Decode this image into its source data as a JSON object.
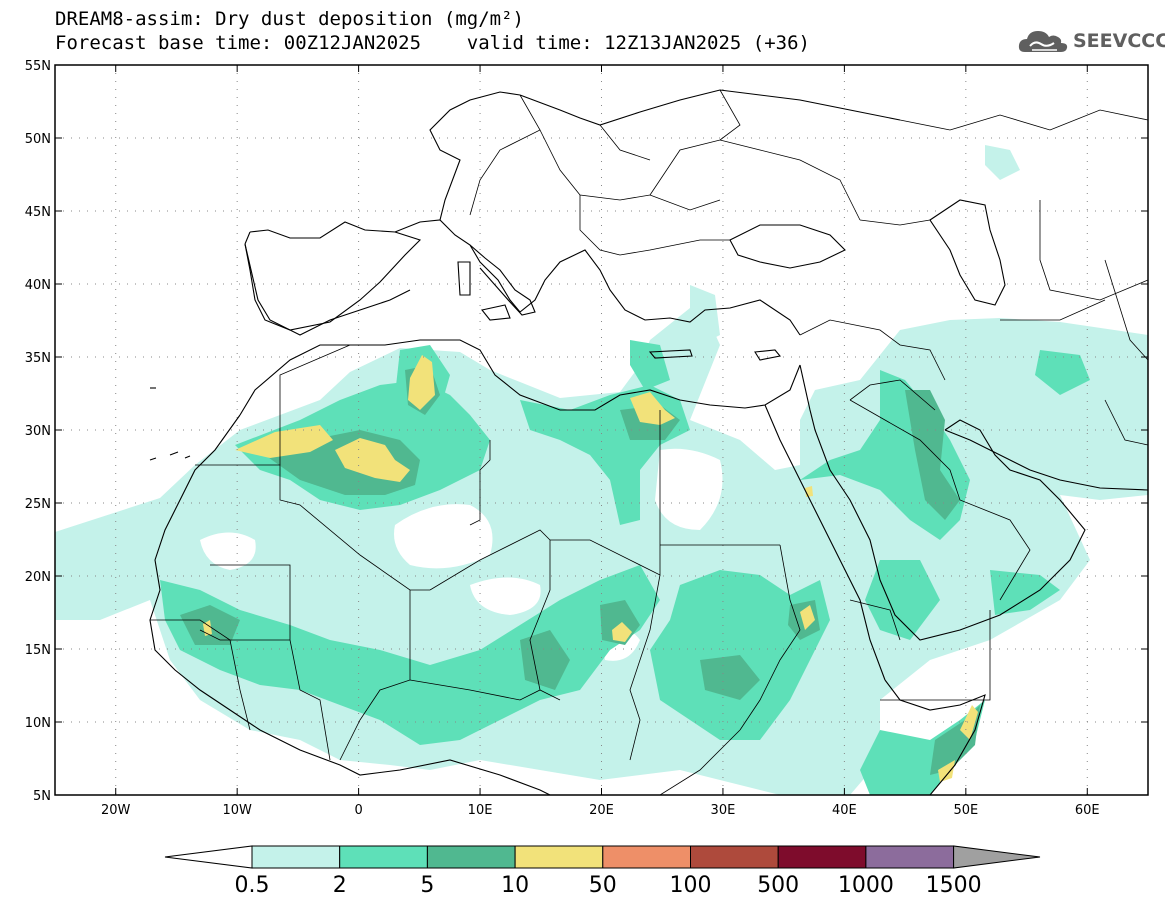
{
  "title": {
    "line1": "DREAM8-assim: Dry dust deposition (mg/m²)",
    "line2": "Forecast base time: 00Z12JAN2025    valid time: 12Z13JAN2025 (+36)"
  },
  "logo": {
    "text": "SEEVCCC",
    "icon": "cloud-icon"
  },
  "map": {
    "lon_range": [
      -25,
      65
    ],
    "lat_range": [
      5,
      55
    ],
    "lat_ticks": [
      {
        "value": 55,
        "label": "55N"
      },
      {
        "value": 50,
        "label": "50N"
      },
      {
        "value": 45,
        "label": "45N"
      },
      {
        "value": 40,
        "label": "40N"
      },
      {
        "value": 35,
        "label": "35N"
      },
      {
        "value": 30,
        "label": "30N"
      },
      {
        "value": 25,
        "label": "25N"
      },
      {
        "value": 20,
        "label": "20N"
      },
      {
        "value": 15,
        "label": "15N"
      },
      {
        "value": 10,
        "label": "10N"
      },
      {
        "value": 5,
        "label": "5N"
      }
    ],
    "lon_ticks": [
      {
        "value": -20,
        "label": "20W"
      },
      {
        "value": -10,
        "label": "10W"
      },
      {
        "value": 0,
        "label": "0"
      },
      {
        "value": 10,
        "label": "10E"
      },
      {
        "value": 20,
        "label": "20E"
      },
      {
        "value": 30,
        "label": "30E"
      },
      {
        "value": 40,
        "label": "40E"
      },
      {
        "value": 50,
        "label": "50E"
      },
      {
        "value": 60,
        "label": "60E"
      }
    ],
    "grid": "dotted"
  },
  "colorbar": {
    "labels": [
      "0.5",
      "2",
      "5",
      "10",
      "50",
      "100",
      "500",
      "1000",
      "1500"
    ],
    "colors": [
      "#c4f2ea",
      "#5ee0b8",
      "#50b890",
      "#f2e27a",
      "#ee8f68",
      "#ae4a3c",
      "#7e0c2c",
      "#8c6c9c"
    ],
    "under_color": "#ffffff",
    "over_color": "#a0a0a0"
  },
  "palette": {
    "c1": "#c4f2ea",
    "c2": "#5ee0b8",
    "c3": "#50b890",
    "c4": "#f2e27a"
  }
}
